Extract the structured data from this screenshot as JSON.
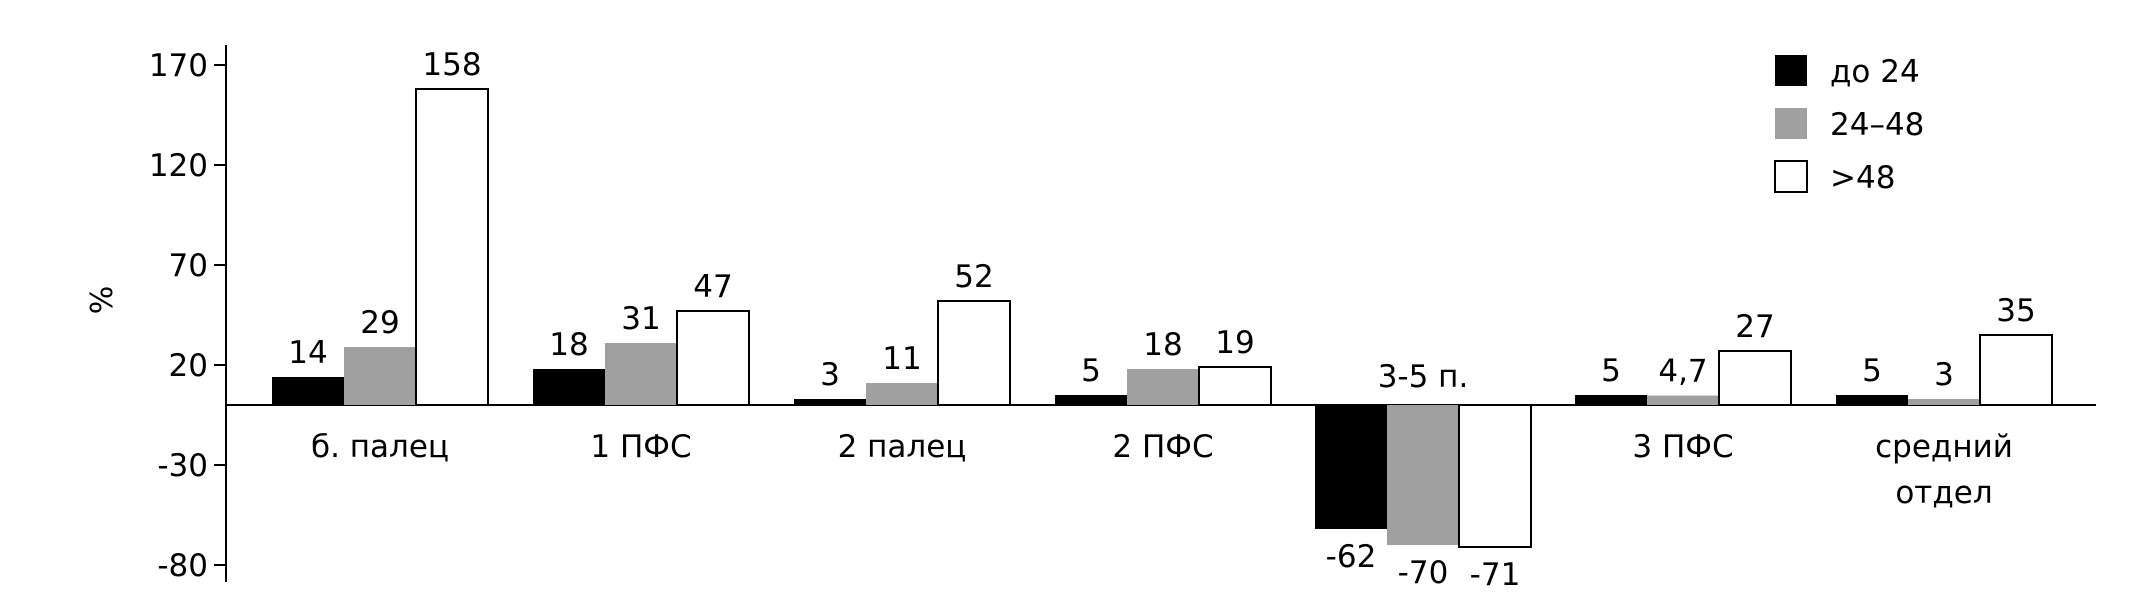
{
  "chart_data": {
    "type": "bar",
    "title": "",
    "xlabel": "",
    "ylabel": "%",
    "ylim": [
      -90,
      180
    ],
    "yticks": [
      "170",
      "120",
      "70",
      "20",
      "-30",
      "-80"
    ],
    "ytick_values": [
      170,
      120,
      70,
      20,
      -30,
      -80
    ],
    "grid": false,
    "legend_position": "top-right",
    "categories": [
      "б. палец",
      "1 ПФС",
      "2 палец",
      "2 ПФС",
      "3-5 п.",
      "3 ПФС",
      "средний отдел"
    ],
    "category_lines": [
      [
        "б. палец"
      ],
      [
        "1 ПФС"
      ],
      [
        "2 палец"
      ],
      [
        "2 ПФС"
      ],
      [
        "3-5 п."
      ],
      [
        "3 ПФС"
      ],
      [
        "средний",
        "отдел"
      ]
    ],
    "series": [
      {
        "name": "до 24",
        "color": "#000000",
        "values": [
          14,
          18,
          3,
          5,
          -62,
          5,
          5
        ],
        "labels": [
          "14",
          "18",
          "3",
          "5",
          "-62",
          "5",
          "5"
        ]
      },
      {
        "name": "24–48",
        "color": "#a0a0a0",
        "values": [
          29,
          31,
          11,
          18,
          -70,
          4.7,
          3
        ],
        "labels": [
          "29",
          "31",
          "11",
          "18",
          "-70",
          "4,7",
          "3"
        ]
      },
      {
        "name": ">48",
        "color": "#ffffff",
        "values": [
          158,
          47,
          52,
          19,
          -71,
          27,
          35
        ],
        "labels": [
          "158",
          "47",
          "52",
          "19",
          "-71",
          "27",
          "35"
        ]
      }
    ]
  }
}
